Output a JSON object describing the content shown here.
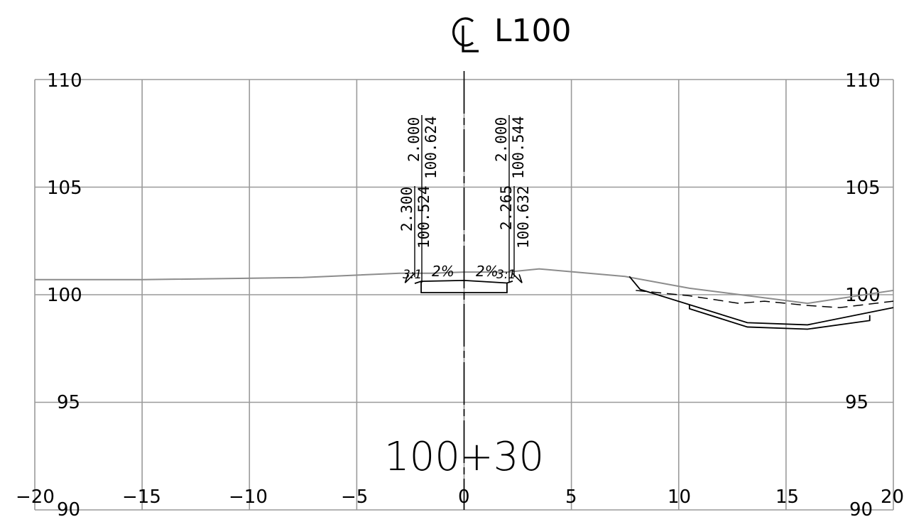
{
  "title": {
    "symbol": "CL",
    "text": "L100"
  },
  "station": "100+30",
  "axes": {
    "x_ticks": [
      "−20",
      "−15",
      "−10",
      "−5",
      "0",
      "5",
      "10",
      "15",
      "20"
    ],
    "y_ticks_left": [
      "110",
      "105",
      "100",
      "95",
      "90"
    ],
    "y_ticks_right": [
      "110",
      "105",
      "100",
      "95",
      "90"
    ]
  },
  "annotations": {
    "left_upper_offset": "2.000",
    "left_upper_elev": "100.624",
    "right_upper_offset": "2.000",
    "right_upper_elev": "100.544",
    "left_lower_offset": "2.300",
    "left_lower_elev": "100.524",
    "right_lower_offset": "2.265",
    "right_lower_elev": "100.632"
  },
  "slopes": {
    "left_ratio": "3:1",
    "left_pct": "2%",
    "right_pct": "2%",
    "right_ratio": "3:1"
  },
  "chart_data": {
    "type": "cross-section",
    "x_range": [
      -20,
      20
    ],
    "y_range": [
      90,
      110
    ],
    "existing_ground": {
      "x": [
        -20,
        -15,
        -7.5,
        -3,
        -1.5,
        0,
        2,
        3.5,
        7.5,
        10.5,
        16,
        20
      ],
      "y": [
        100.7,
        100.7,
        100.8,
        101.0,
        101.0,
        101.05,
        101.05,
        101.2,
        100.85,
        100.3,
        99.6,
        100.2
      ]
    },
    "road_top": {
      "x": [
        -2.3,
        -2.0,
        0,
        2.0,
        2.265
      ],
      "y": [
        100.524,
        100.624,
        100.664,
        100.544,
        100.632
      ]
    },
    "road_bottom": {
      "x": [
        -2.0,
        -2.0,
        2.0,
        2.0
      ],
      "y": [
        100.6,
        100.1,
        100.1,
        100.544
      ]
    },
    "centerline_x": 0,
    "ditch_dashed": {
      "x": [
        8.0,
        10.5,
        12.8,
        14.0,
        16.0,
        17.5,
        20
      ],
      "y": [
        100.2,
        99.95,
        99.6,
        99.7,
        99.5,
        99.4,
        99.7
      ]
    },
    "ditch_upper": {
      "x": [
        7.7,
        8.2,
        13.2,
        16.0,
        20
      ],
      "y": [
        100.85,
        100.25,
        98.7,
        98.6,
        99.4
      ]
    },
    "ditch_lower": {
      "x": [
        10.5,
        10.5,
        13.2,
        16.0,
        18.9,
        18.9
      ],
      "y": [
        99.55,
        99.35,
        98.5,
        98.4,
        98.8,
        99.05
      ]
    }
  }
}
